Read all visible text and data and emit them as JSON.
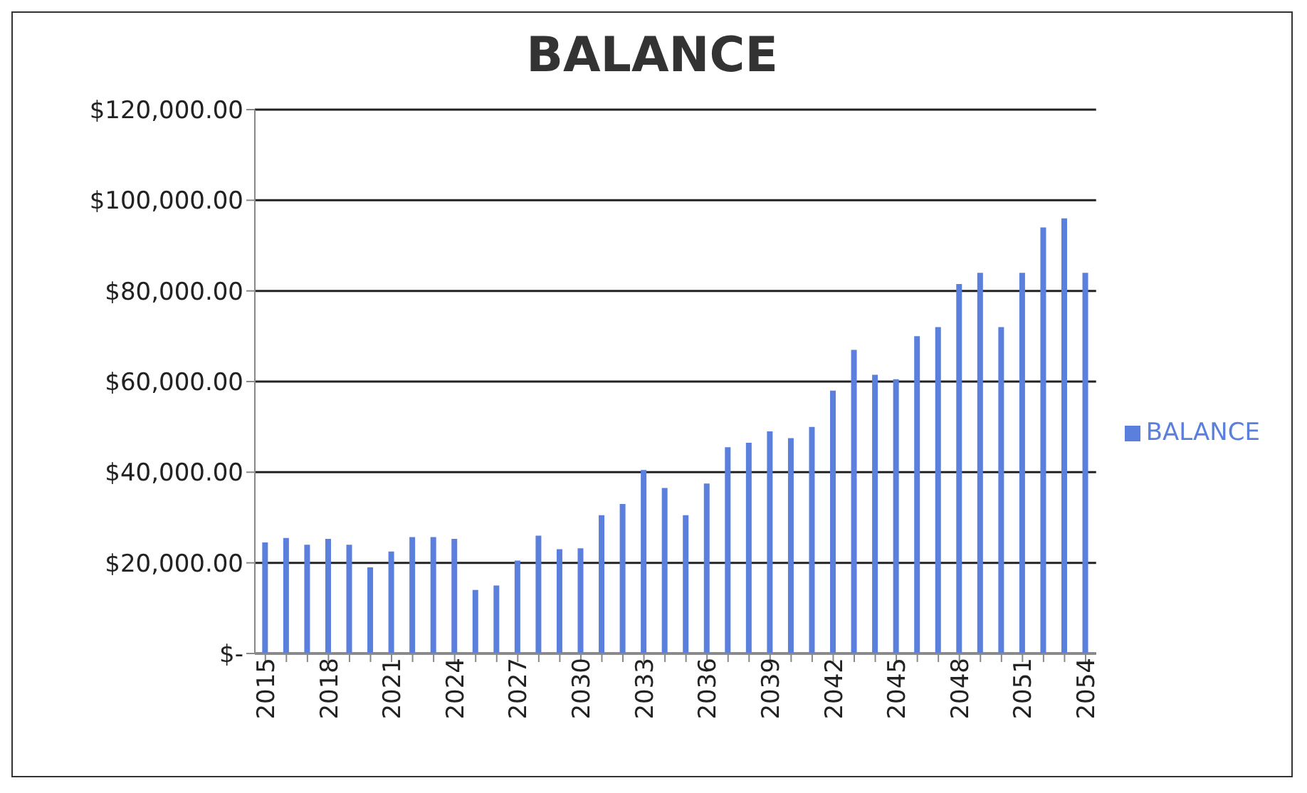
{
  "chart_data": {
    "type": "bar",
    "title": "BALANCE",
    "categories": [
      "2015",
      null,
      null,
      "2018",
      null,
      null,
      "2021",
      null,
      null,
      "2024",
      null,
      null,
      "2027",
      null,
      null,
      "2030",
      null,
      null,
      "2033",
      null,
      null,
      "2036",
      null,
      null,
      "2039",
      null,
      null,
      "2042",
      null,
      null,
      "2045",
      null,
      null,
      "2048",
      null,
      null,
      "2051",
      null,
      null,
      "2054"
    ],
    "series": [
      {
        "name": "BALANCE",
        "color": "#5a7fdc",
        "values": [
          24500,
          25500,
          24000,
          25300,
          24000,
          19000,
          22500,
          25700,
          25700,
          25300,
          14000,
          15000,
          20500,
          26000,
          23000,
          23200,
          30500,
          33000,
          40500,
          36500,
          30500,
          37500,
          45500,
          46500,
          49000,
          47500,
          50000,
          58000,
          67000,
          61500,
          60500,
          70000,
          72000,
          81500,
          84000,
          72000,
          84000,
          94000,
          96000,
          84000
        ]
      }
    ],
    "ylim": [
      0,
      120000
    ],
    "yticks": [
      {
        "value": 0,
        "label": "$-"
      },
      {
        "value": 20000,
        "label": "$20,000.00"
      },
      {
        "value": 40000,
        "label": "$40,000.00"
      },
      {
        "value": 60000,
        "label": "$60,000.00"
      },
      {
        "value": 80000,
        "label": "$80,000.00"
      },
      {
        "value": 100000,
        "label": "$100,000.00"
      },
      {
        "value": 120000,
        "label": "$120,000.00"
      }
    ],
    "grid": "y",
    "legend": "right"
  }
}
